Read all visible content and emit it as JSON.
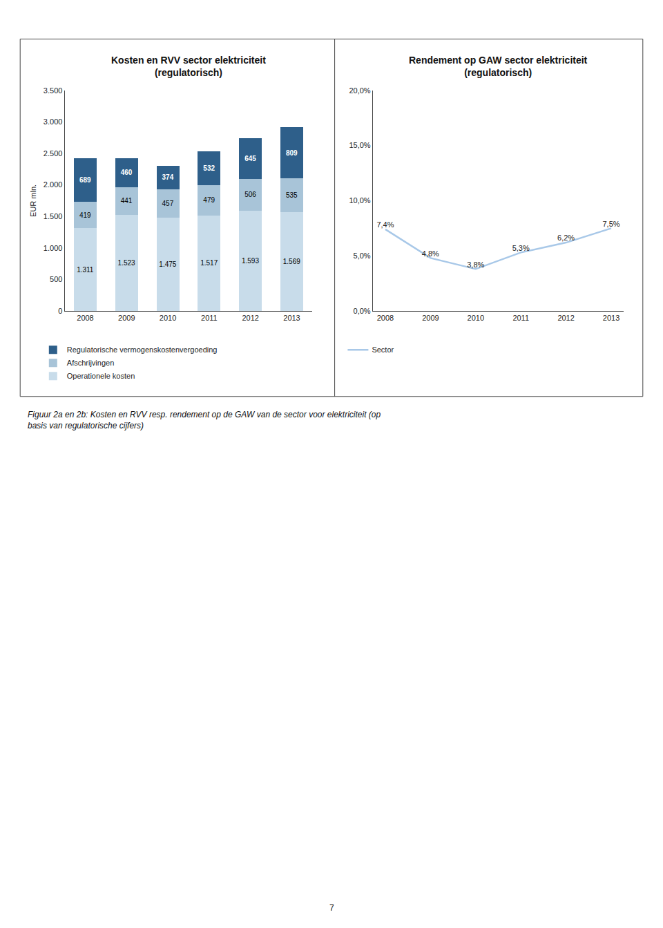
{
  "chart_data": [
    {
      "type": "bar",
      "title": "Kosten en RVV sector elektriciteit\n(regulatorisch)",
      "ylabel": "EUR mln.",
      "categories": [
        "2008",
        "2009",
        "2010",
        "2011",
        "2012",
        "2013"
      ],
      "series": [
        {
          "name": "Operationele kosten",
          "color": "#c8dcea",
          "values": [
            1311,
            1523,
            1475,
            1517,
            1593,
            1569
          ],
          "value_labels": [
            "1.311",
            "1.523",
            "1.475",
            "1.517",
            "1.593",
            "1.569"
          ]
        },
        {
          "name": "Afschrijvingen",
          "color": "#a8c4d8",
          "values": [
            419,
            441,
            457,
            479,
            506,
            535
          ],
          "value_labels": [
            "419",
            "441",
            "457",
            "479",
            "506",
            "535"
          ]
        },
        {
          "name": "Regulatorische vermogenskostenvergoeding",
          "color": "#2e5f8a",
          "values": [
            689,
            460,
            374,
            532,
            645,
            809
          ],
          "value_labels": [
            "689",
            "460",
            "374",
            "532",
            "645",
            "809"
          ]
        }
      ],
      "stacked": true,
      "data_labels": true,
      "ylim": [
        0,
        3500
      ],
      "yticks": [
        0,
        500,
        {
          "value": 1000,
          "label": "1.000"
        },
        {
          "value": 1500,
          "label": "1.500"
        },
        {
          "value": 2000,
          "label": "2.000"
        },
        {
          "value": 2500,
          "label": "2.500"
        },
        {
          "value": 3000,
          "label": "3.000"
        },
        {
          "value": 3500,
          "label": "3.500"
        }
      ],
      "grid": false,
      "legend": "bottom"
    },
    {
      "type": "line",
      "title": "Rendement op GAW sector elektriciteit\n(regulatorisch)",
      "categories": [
        "2008",
        "2009",
        "2010",
        "2011",
        "2012",
        "2013"
      ],
      "series": [
        {
          "name": "Sector",
          "color": "#a8c8e8",
          "values": [
            7.4,
            4.8,
            3.8,
            5.3,
            6.2,
            7.5
          ],
          "value_labels": [
            "7,4%",
            "4,8%",
            "3,8%",
            "5,3%",
            "6,2%",
            "7,5%"
          ]
        }
      ],
      "data_labels": true,
      "ylim": [
        0,
        20
      ],
      "yticks": [
        {
          "value": 0,
          "label": "0,0%"
        },
        {
          "value": 5,
          "label": "5,0%"
        },
        {
          "value": 10,
          "label": "10,0%"
        },
        {
          "value": 15,
          "label": "15,0%"
        },
        {
          "value": 20,
          "label": "20,0%"
        }
      ],
      "grid": false,
      "legend": "bottom"
    }
  ],
  "annotations": [
    "Figuur 2a en 2b: Kosten en RVV resp. rendement op de GAW van de sector voor elektriciteit (op\nbasis van regulatorische cijfers)",
    "7"
  ]
}
